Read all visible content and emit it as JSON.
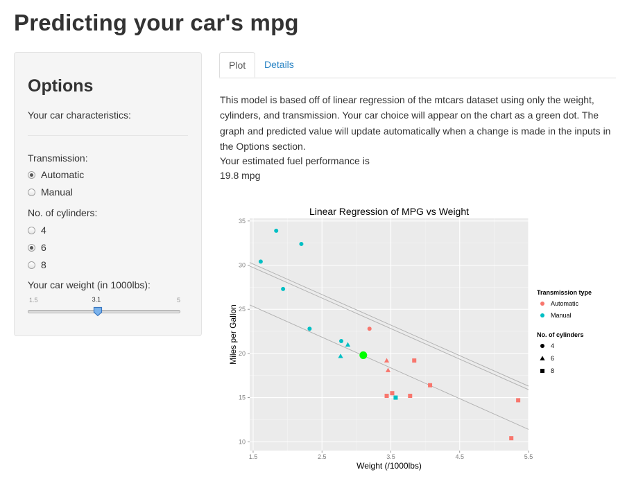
{
  "page": {
    "title": "Predicting your car's mpg"
  },
  "sidebar": {
    "heading": "Options",
    "subheading": "Your car characteristics:",
    "transmission": {
      "label": "Transmission:",
      "options": [
        "Automatic",
        "Manual"
      ],
      "selected": "Automatic"
    },
    "cylinders": {
      "label": "No. of cylinders:",
      "options": [
        "4",
        "6",
        "8"
      ],
      "selected": "6"
    },
    "weight": {
      "label": "Your car weight (in 1000lbs):",
      "min_label": "1.5",
      "max_label": "5",
      "min": 1.5,
      "max": 5,
      "value": 3.1,
      "value_label": "3.1"
    }
  },
  "tabs": [
    {
      "label": "Plot",
      "active": true
    },
    {
      "label": "Details",
      "active": false
    }
  ],
  "main": {
    "description": "This model is based off of linear regression of the mtcars dataset using only the weight, cylinders, and transmission. Your car choice will appear on the chart as a green dot. The graph and predicted value will update automatically when a change is made in the inputs in the Options section.",
    "estimate_label": "Your estimated fuel performance is",
    "estimate_value": "19.8 mpg"
  },
  "colors": {
    "automatic": "#f8766d",
    "manual": "#00bfc4",
    "prediction": "#00ff00",
    "panel": "#ebebeb",
    "link": "#2a84c4"
  },
  "chart_data": {
    "type": "scatter",
    "title": "Linear Regression of MPG vs Weight",
    "xlabel": "Weight (/1000lbs)",
    "ylabel": "Miles per Gallon",
    "xlim": [
      1.45,
      5.5
    ],
    "ylim": [
      9,
      35.3
    ],
    "x_ticks": [
      1.5,
      2.5,
      3.5,
      4.5,
      5.5
    ],
    "x_tick_labels": [
      "1.5",
      "2.5",
      "3.5",
      "4.5",
      "5.5"
    ],
    "y_ticks": [
      10,
      15,
      20,
      25,
      30,
      35
    ],
    "y_tick_labels": [
      "10",
      "15",
      "20",
      "25",
      "30",
      "35"
    ],
    "grid": true,
    "legend_placement": "right",
    "legends": [
      {
        "title": "Transmission type",
        "entries": [
          {
            "label": "Automatic",
            "color": "#f8766d"
          },
          {
            "label": "Manual",
            "color": "#00bfc4"
          }
        ]
      },
      {
        "title": "No. of cylinders",
        "entries": [
          {
            "label": "4",
            "shape": "circle"
          },
          {
            "label": "6",
            "shape": "triangle"
          },
          {
            "label": "8",
            "shape": "square"
          }
        ]
      }
    ],
    "series": [
      {
        "transmission": "Automatic",
        "cylinders": "4",
        "points": [
          [
            3.19,
            22.8
          ]
        ]
      },
      {
        "transmission": "Automatic",
        "cylinders": "6",
        "points": [
          [
            3.44,
            19.2
          ],
          [
            3.46,
            18.1
          ]
        ]
      },
      {
        "transmission": "Automatic",
        "cylinders": "8",
        "points": [
          [
            3.84,
            19.2
          ],
          [
            4.07,
            16.4
          ],
          [
            3.44,
            15.2
          ],
          [
            3.52,
            15.5
          ],
          [
            3.78,
            15.2
          ],
          [
            5.25,
            10.4
          ],
          [
            5.35,
            14.7
          ]
        ]
      },
      {
        "transmission": "Manual",
        "cylinders": "4",
        "points": [
          [
            1.61,
            30.4
          ],
          [
            1.835,
            33.9
          ],
          [
            2.2,
            32.4
          ],
          [
            1.935,
            27.3
          ],
          [
            2.32,
            22.8
          ],
          [
            2.78,
            21.4
          ]
        ]
      },
      {
        "transmission": "Manual",
        "cylinders": "6",
        "points": [
          [
            2.875,
            21.0
          ],
          [
            2.77,
            19.7
          ]
        ]
      },
      {
        "transmission": "Manual",
        "cylinders": "8",
        "points": [
          [
            3.57,
            15.0
          ]
        ]
      }
    ],
    "prediction": {
      "x": 3.1,
      "y": 19.8
    },
    "regression_lines": [
      {
        "x": [
          1.45,
          5.5
        ],
        "y": [
          30.3,
          16.3
        ]
      },
      {
        "x": [
          1.45,
          5.5
        ],
        "y": [
          29.9,
          15.9
        ]
      },
      {
        "x": [
          1.45,
          5.5
        ],
        "y": [
          25.5,
          11.4
        ]
      }
    ]
  }
}
